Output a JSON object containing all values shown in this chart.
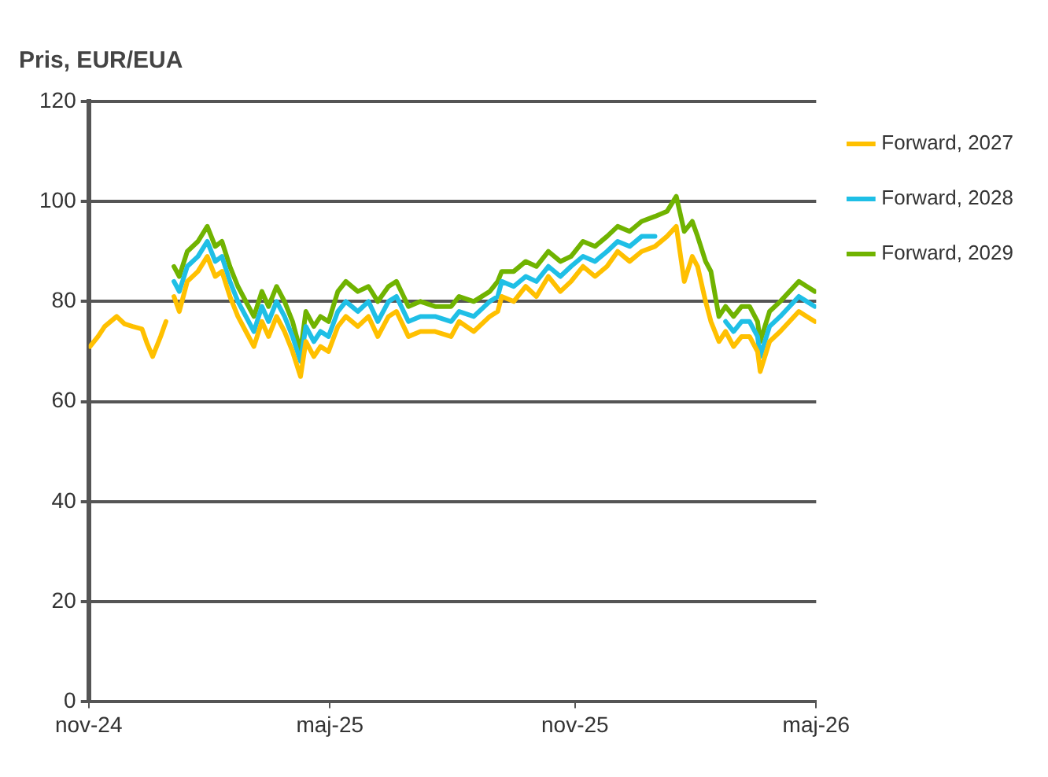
{
  "chart_data": {
    "type": "line",
    "ylabel": "Pris, EUR/EUA",
    "x": [
      "2024-11-02",
      "2024-11-08",
      "2024-11-13",
      "2024-11-22",
      "2024-11-28",
      "2024-12-04",
      "2024-12-11",
      "2024-12-15",
      "2024-12-19",
      "2024-12-25",
      "2024-12-29",
      "2025-01-01",
      "2025-01-04",
      "2025-01-08",
      "2025-01-14",
      "2025-01-22",
      "2025-01-29",
      "2025-02-04",
      "2025-02-09",
      "2025-02-15",
      "2025-02-21",
      "2025-02-27",
      "2025-03-05",
      "2025-03-11",
      "2025-03-16",
      "2025-03-22",
      "2025-03-28",
      "2025-04-03",
      "2025-04-09",
      "2025-04-13",
      "2025-04-19",
      "2025-04-24",
      "2025-04-30",
      "2025-05-07",
      "2025-05-13",
      "2025-05-22",
      "2025-05-30",
      "2025-06-06",
      "2025-06-14",
      "2025-06-20",
      "2025-06-29",
      "2025-07-08",
      "2025-07-19",
      "2025-07-31",
      "2025-08-06",
      "2025-08-17",
      "2025-08-29",
      "2025-09-04",
      "2025-09-07",
      "2025-09-16",
      "2025-09-25",
      "2025-10-03",
      "2025-10-12",
      "2025-10-21",
      "2025-10-29",
      "2025-11-07",
      "2025-11-16",
      "2025-11-25",
      "2025-12-03",
      "2025-12-12",
      "2025-12-21",
      "2025-12-31",
      "2026-01-09",
      "2026-01-16",
      "2026-01-22",
      "2026-01-28",
      "2026-02-01",
      "2026-02-07",
      "2026-02-11",
      "2026-02-17",
      "2026-02-22",
      "2026-02-28",
      "2026-03-06",
      "2026-03-12",
      "2026-03-18",
      "2026-03-20",
      "2026-03-27",
      "2026-04-04",
      "2026-04-11",
      "2026-04-18",
      "2026-04-24",
      "2026-04-30"
    ],
    "series": [
      {
        "name": "Forward, 2027",
        "color": "#ffc000",
        "values": [
          71,
          73,
          75,
          77,
          75.5,
          75,
          74.5,
          71.5,
          69,
          73,
          76,
          null,
          81,
          78,
          84,
          86,
          89,
          85,
          86,
          81,
          77,
          74,
          71,
          76,
          73,
          77,
          74,
          70,
          65,
          72,
          69,
          71,
          70,
          75,
          77,
          75,
          77,
          73,
          77,
          78,
          73,
          74,
          74,
          73,
          76,
          74,
          77,
          78,
          81,
          80,
          83,
          81,
          85,
          82,
          84,
          87,
          85,
          87,
          90,
          88,
          90,
          91,
          93,
          95,
          84,
          89,
          87,
          80,
          76,
          72,
          74,
          71,
          73,
          73,
          70,
          66,
          72,
          74,
          76,
          78,
          77,
          76
        ]
      },
      {
        "name": "Forward, 2028",
        "color": "#1fbfe6",
        "values": [
          null,
          null,
          null,
          null,
          null,
          null,
          null,
          null,
          null,
          null,
          null,
          null,
          84,
          82,
          87,
          89,
          92,
          88,
          89,
          84,
          80,
          77,
          74,
          79,
          76,
          80,
          77,
          73,
          68,
          75,
          72,
          74,
          73,
          78,
          80,
          78,
          80,
          76,
          80,
          81,
          76,
          77,
          77,
          76,
          78,
          77,
          80,
          81,
          84,
          83,
          85,
          84,
          87,
          85,
          87,
          89,
          88,
          90,
          92,
          91,
          93,
          93,
          null,
          null,
          null,
          null,
          null,
          null,
          null,
          null,
          76,
          74,
          76,
          76,
          73,
          69,
          75,
          77,
          79,
          81,
          80,
          79
        ]
      },
      {
        "name": "Forward, 2029",
        "color": "#70b300",
        "values": [
          null,
          null,
          null,
          null,
          null,
          null,
          null,
          null,
          null,
          null,
          null,
          null,
          87,
          85,
          90,
          92,
          95,
          91,
          92,
          87,
          83,
          80,
          77,
          82,
          79,
          83,
          80,
          76,
          70,
          78,
          75,
          77,
          76,
          82,
          84,
          82,
          83,
          80,
          83,
          84,
          79,
          80,
          79,
          79,
          81,
          80,
          82,
          84,
          86,
          86,
          88,
          87,
          90,
          88,
          89,
          92,
          91,
          93,
          95,
          94,
          96,
          97,
          98,
          101,
          94,
          96,
          93,
          88,
          86,
          77,
          79,
          77,
          79,
          79,
          76,
          72,
          78,
          80,
          82,
          84,
          83,
          82
        ]
      }
    ],
    "xlim": [
      "2024-11-01",
      "2026-05-01"
    ],
    "xticks": [
      {
        "value": "2024-11-01",
        "label": "nov-24"
      },
      {
        "value": "2025-05-01",
        "label": "maj-25"
      },
      {
        "value": "2025-11-01",
        "label": "nov-25"
      },
      {
        "value": "2026-05-01",
        "label": "maj-26"
      }
    ],
    "ylim": [
      0,
      120
    ],
    "yticks": [
      0,
      20,
      40,
      60,
      80,
      100,
      120
    ],
    "grid": "y",
    "legend": "top right",
    "marker": "none",
    "line_style": "solid"
  }
}
